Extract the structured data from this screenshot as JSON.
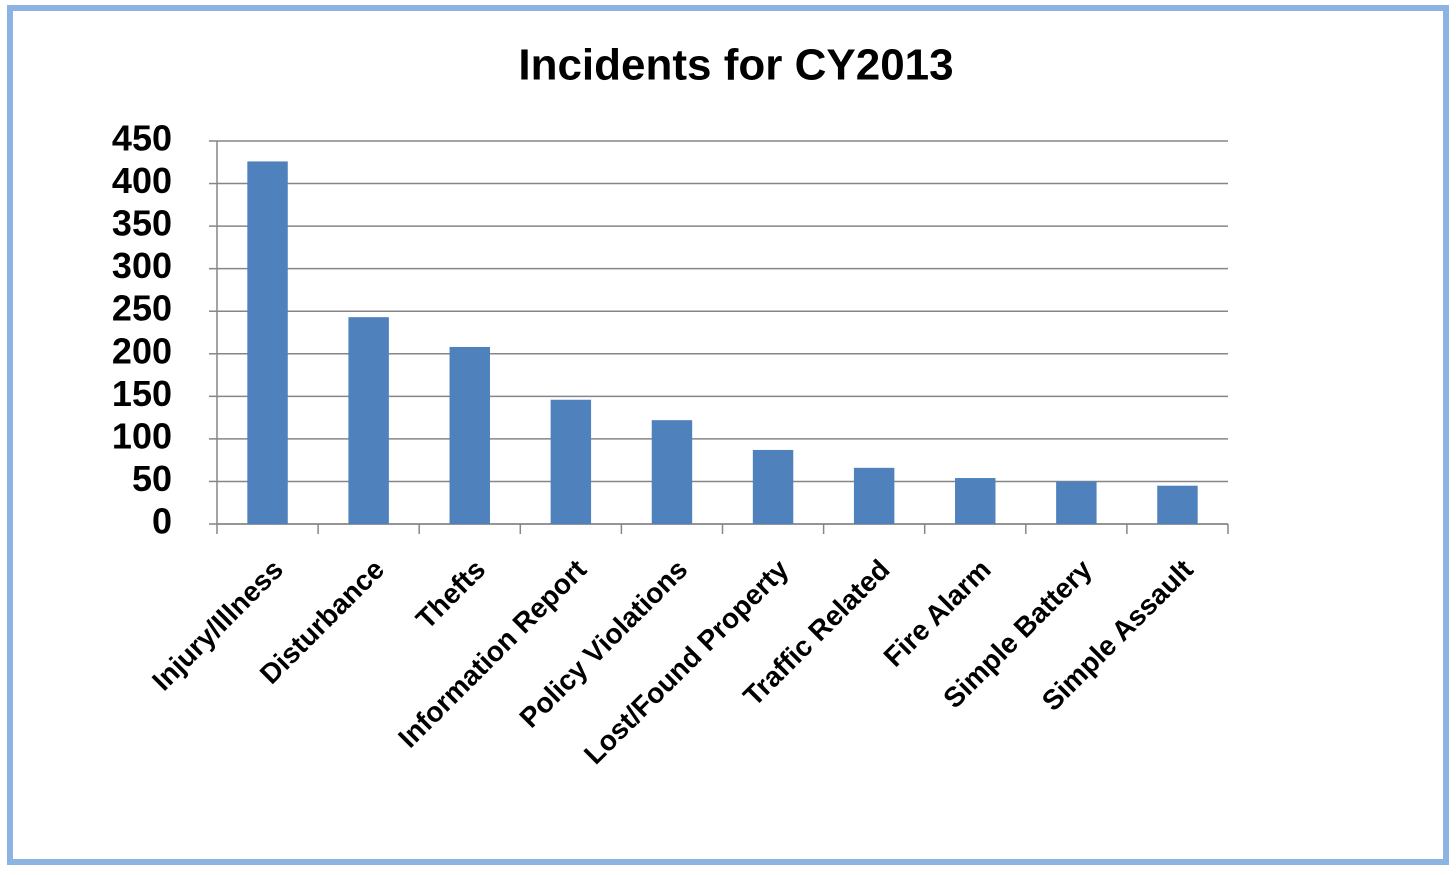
{
  "chart_data": {
    "type": "bar",
    "title": "Incidents for CY2013",
    "categories": [
      "Injury/Illness",
      "Disturbance",
      "Thefts",
      "Information Report",
      "Policy Violations",
      "Lost/Found Property",
      "Traffic Related",
      "Fire Alarm",
      "Simple Battery",
      "Simple Assault"
    ],
    "values": [
      426,
      243,
      208,
      146,
      122,
      87,
      66,
      54,
      50,
      45
    ],
    "color": "#4f81bd",
    "ylim": [
      0,
      450
    ],
    "yticks": [
      0,
      50,
      100,
      150,
      200,
      250,
      300,
      350,
      400,
      450
    ],
    "grid": true
  }
}
